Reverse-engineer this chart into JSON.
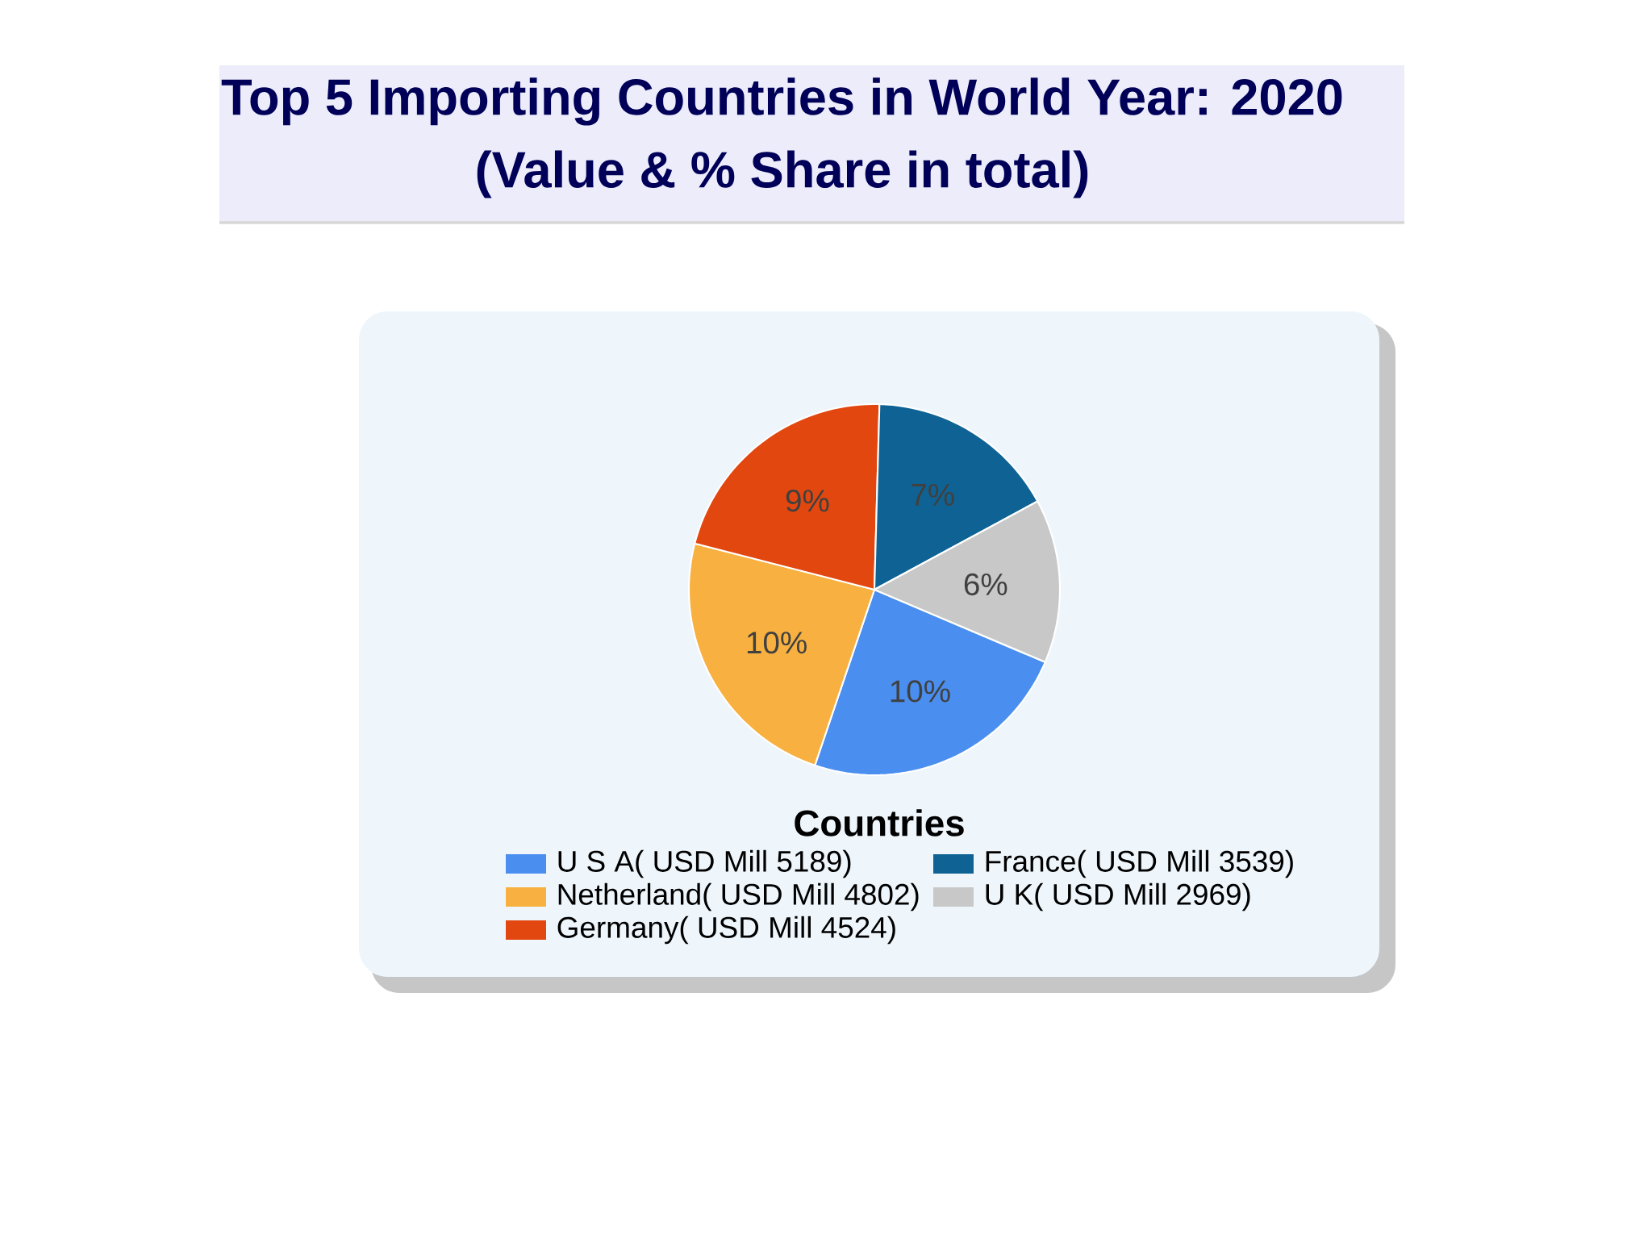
{
  "chart_data": {
    "type": "pie",
    "title": "Top 5 Importing Countries in World Year: 2020",
    "subtitle": "(Value & % Share in total)",
    "legend_title": "Countries",
    "categories": [
      "U S A( USD Mill 5189)",
      "Netherland( USD Mill 4802)",
      "Germany( USD Mill 4524)",
      "France( USD Mill 3539)",
      "U K( USD Mill 2969)"
    ],
    "values": [
      10,
      10,
      9,
      7,
      6
    ],
    "colors": [
      "#4a8ff0",
      "#f8b140",
      "#e2470f",
      "#0f6394",
      "#c8c8c8"
    ],
    "value_labels": [
      "10%",
      "10%",
      "9%",
      "7%",
      "6%"
    ],
    "data_labels": true,
    "legend": "bottom"
  }
}
